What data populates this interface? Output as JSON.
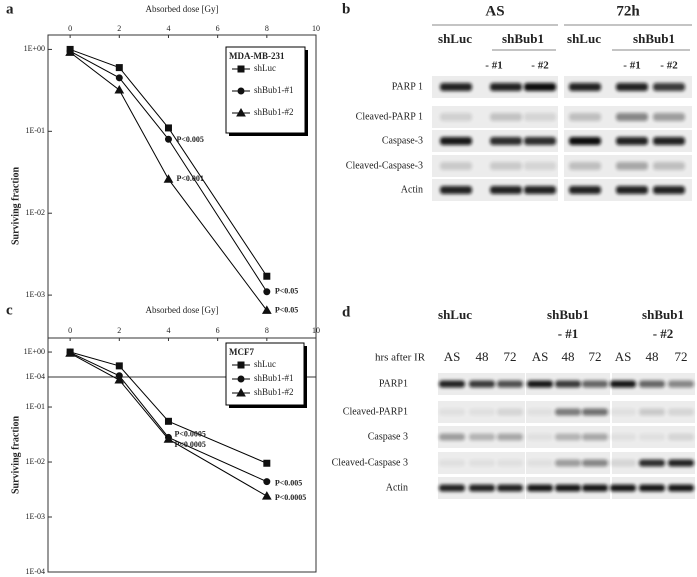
{
  "chart_data": [
    {
      "type": "line",
      "panel": "a",
      "title": "Absorbed dose [Gy]",
      "ylabel": "Surviving fraction",
      "x": [
        0,
        2,
        4,
        8
      ],
      "xlim": [
        -0.9,
        10
      ],
      "xticks": [
        0,
        2,
        4,
        6,
        8,
        10
      ],
      "ylim": [
        0.0001,
        1.5
      ],
      "yscale": "log",
      "yticks": [
        {
          "value": 1,
          "label": "1E+00"
        },
        {
          "value": 0.1,
          "label": "1E-01"
        },
        {
          "value": 0.01,
          "label": "1E-02"
        },
        {
          "value": 0.001,
          "label": "1E-03"
        },
        {
          "value": 0.0001,
          "label": "1E-04"
        }
      ],
      "legend_title": "MDA-MB-231",
      "legend": "upper right",
      "series": [
        {
          "name": "shLuc",
          "color": "#000000",
          "marker": "square",
          "values": [
            1.0,
            0.6,
            0.11,
            0.0017
          ]
        },
        {
          "name": "shBub1-#1",
          "color": "#000000",
          "marker": "circle",
          "values": [
            0.95,
            0.45,
            0.08,
            0.0011
          ]
        },
        {
          "name": "shBub1-#2",
          "color": "#000000",
          "marker": "triangle",
          "values": [
            0.92,
            0.32,
            0.026,
            0.00065
          ]
        }
      ],
      "annotations": [
        "P<0.005",
        "P<0.001",
        "P<0.05",
        "P<0.05"
      ]
    },
    {
      "type": "line",
      "panel": "c",
      "title": "Absorbed dose [Gy]",
      "ylabel": "Surviving fraction",
      "x": [
        0,
        2,
        4,
        8
      ],
      "xlim": [
        -0.9,
        10
      ],
      "xticks": [
        0,
        2,
        4,
        6,
        8,
        10
      ],
      "ylim": [
        0.0001,
        1.8
      ],
      "yscale": "log",
      "yticks": [
        {
          "value": 1,
          "label": "1E+00"
        },
        {
          "value": 0.1,
          "label": "1E-01"
        },
        {
          "value": 0.01,
          "label": "1E-02"
        },
        {
          "value": 0.001,
          "label": "1E-03"
        },
        {
          "value": 0.0001,
          "label": "1E-04"
        }
      ],
      "legend_title": "MCF7",
      "legend": "upper right",
      "series": [
        {
          "name": "shLuc",
          "color": "#000000",
          "marker": "square",
          "values": [
            1.0,
            0.56,
            0.055,
            0.0095
          ]
        },
        {
          "name": "shBub1-#1",
          "color": "#000000",
          "marker": "circle",
          "values": [
            0.98,
            0.37,
            0.028,
            0.0044
          ]
        },
        {
          "name": "shBub1-#2",
          "color": "#000000",
          "marker": "triangle",
          "values": [
            0.95,
            0.31,
            0.026,
            0.0024
          ]
        }
      ],
      "annotations": [
        "P<0.0005",
        "P<0.0005",
        "P<0.005",
        "P<0.0005"
      ]
    }
  ],
  "blots": [
    {
      "panel": "b",
      "conditions": [
        "AS",
        "72h"
      ],
      "column_labels": [
        "shLuc",
        "shBub1",
        "- #1",
        "- #2",
        "shLuc",
        "shBub1",
        "- #1",
        "- #2"
      ],
      "rows": [
        "PARP 1",
        "Cleaved-PARP 1",
        "Caspase-3",
        "Cleaved-Caspase-3",
        "Actin"
      ]
    },
    {
      "panel": "d",
      "groups": [
        "shLuc",
        "shBub1",
        "- #1",
        "shBub1",
        "- #2"
      ],
      "lane_title": "hrs after IR",
      "lanes": [
        "AS",
        "48",
        "72",
        "AS",
        "48",
        "72",
        "AS",
        "48",
        "72"
      ],
      "rows": [
        "PARP1",
        "Cleaved-PARP1",
        "Caspase 3",
        "Cleaved-Caspase 3",
        "Actin"
      ]
    }
  ]
}
